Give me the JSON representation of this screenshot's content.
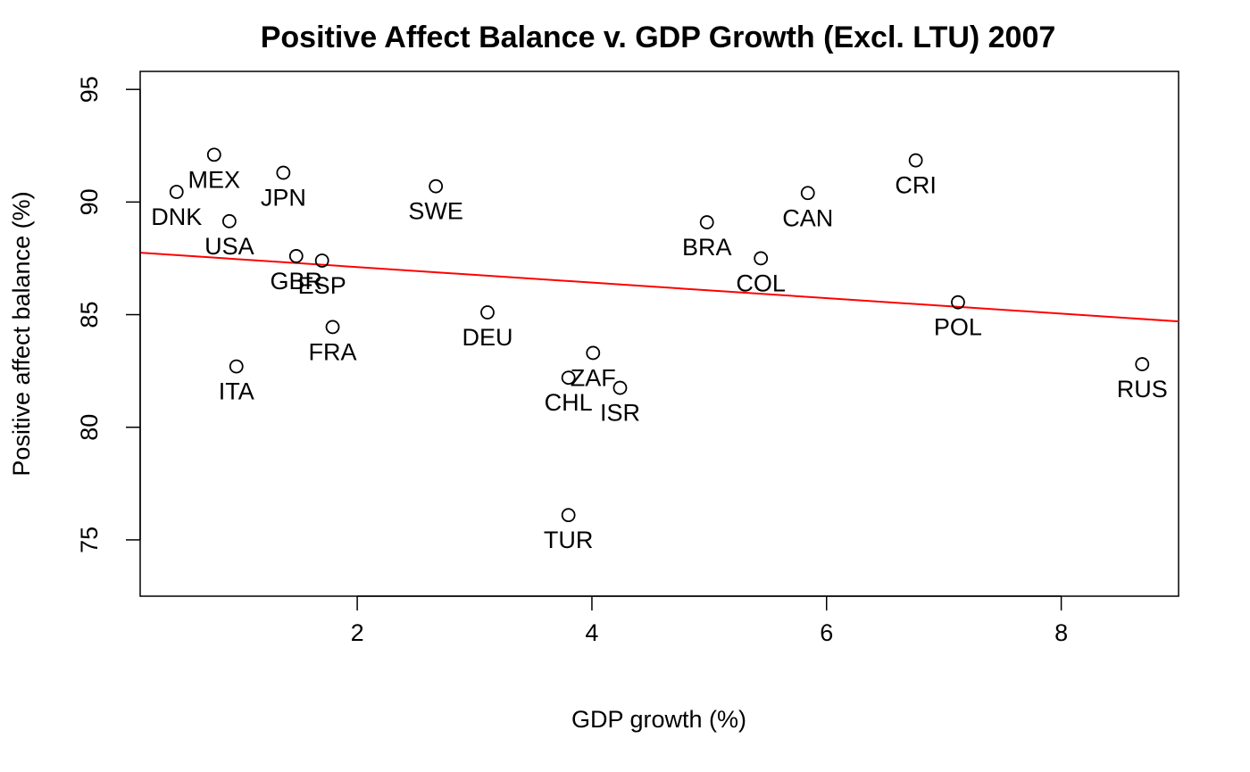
{
  "chart_data": {
    "type": "scatter",
    "title": "Positive Affect Balance v. GDP Growth (Excl. LTU) 2007",
    "xlabel": "GDP growth (%)",
    "ylabel": "Positive affect balance (%)",
    "xlim": [
      0.15,
      9.0
    ],
    "ylim": [
      72.5,
      95.8
    ],
    "xticks": [
      2,
      4,
      6,
      8
    ],
    "yticks": [
      75,
      80,
      85,
      90,
      95
    ],
    "grid": false,
    "point_color": "#000000",
    "trend_color": "#ff0000",
    "points": [
      {
        "label": "MEX",
        "x": 0.78,
        "y": 92.1
      },
      {
        "label": "DNK",
        "x": 0.46,
        "y": 90.45
      },
      {
        "label": "USA",
        "x": 0.91,
        "y": 89.15
      },
      {
        "label": "JPN",
        "x": 1.37,
        "y": 91.3
      },
      {
        "label": "GBR",
        "x": 1.48,
        "y": 87.6
      },
      {
        "label": "ESP",
        "x": 1.7,
        "y": 87.4
      },
      {
        "label": "FRA",
        "x": 1.79,
        "y": 84.45
      },
      {
        "label": "ITA",
        "x": 0.97,
        "y": 82.7
      },
      {
        "label": "SWE",
        "x": 2.67,
        "y": 90.7
      },
      {
        "label": "DEU",
        "x": 3.11,
        "y": 85.1
      },
      {
        "label": "ZAF",
        "x": 4.01,
        "y": 83.3
      },
      {
        "label": "CHL",
        "x": 3.8,
        "y": 82.2
      },
      {
        "label": "ISR",
        "x": 4.24,
        "y": 81.75
      },
      {
        "label": "TUR",
        "x": 3.8,
        "y": 76.1
      },
      {
        "label": "BRA",
        "x": 4.98,
        "y": 89.1
      },
      {
        "label": "COL",
        "x": 5.44,
        "y": 87.5
      },
      {
        "label": "CAN",
        "x": 5.84,
        "y": 90.4
      },
      {
        "label": "CRI",
        "x": 6.76,
        "y": 91.85
      },
      {
        "label": "POL",
        "x": 7.12,
        "y": 85.55
      },
      {
        "label": "RUS",
        "x": 8.69,
        "y": 82.8
      }
    ],
    "trend_line": {
      "x": [
        0.15,
        9.0
      ],
      "y": [
        87.75,
        84.7
      ]
    }
  }
}
